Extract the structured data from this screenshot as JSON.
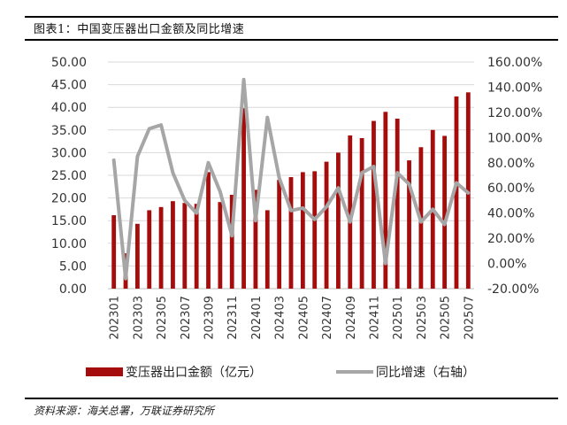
{
  "figure": {
    "title": "图表1：中国变压器出口金额及同比增速",
    "source": "资料来源：海关总署，万联证券研究所"
  },
  "chart_data": {
    "type": "bar+line",
    "categories": [
      "202301",
      "202302",
      "202303",
      "202304",
      "202305",
      "202306",
      "202307",
      "202308",
      "202309",
      "202310",
      "202311",
      "202312",
      "202401",
      "202402",
      "202403",
      "202404",
      "202405",
      "202406",
      "202407",
      "202408",
      "202409",
      "202410",
      "202411",
      "202412",
      "202501",
      "202502",
      "202503",
      "202504",
      "202505",
      "202506",
      "202507"
    ],
    "x_tick_labels": [
      "202301",
      "202303",
      "202305",
      "202307",
      "202309",
      "202311",
      "202401",
      "202403",
      "202405",
      "202407",
      "202409",
      "202411",
      "202501",
      "202503",
      "202505",
      "202507"
    ],
    "series": [
      {
        "name": "变压器出口金额（亿元）",
        "type": "bar",
        "axis": "left",
        "color": "#a50d0d",
        "values": [
          16.2,
          7.8,
          14.3,
          17.3,
          18.0,
          19.3,
          18.9,
          18.7,
          25.7,
          19.1,
          20.7,
          39.8,
          21.8,
          17.3,
          24.0,
          24.6,
          25.7,
          25.9,
          28.0,
          30.0,
          33.8,
          33.2,
          37.0,
          39.0,
          37.5,
          28.3,
          31.2,
          35.0,
          33.7,
          42.4,
          43.3
        ]
      },
      {
        "name": "同比增速（右轴）",
        "type": "line",
        "axis": "right",
        "color": "#a6a6a6",
        "values": [
          82,
          -12,
          85,
          107,
          110,
          72,
          50,
          40,
          80,
          57,
          22,
          146,
          34,
          116,
          68,
          42,
          44,
          35,
          45,
          60,
          33,
          72,
          77,
          0,
          72,
          63,
          33,
          43,
          31,
          64,
          56
        ]
      }
    ],
    "y_left": {
      "min": 0,
      "max": 50,
      "step": 5,
      "tick_labels": [
        "0.00",
        "5.00",
        "10.00",
        "15.00",
        "20.00",
        "25.00",
        "30.00",
        "35.00",
        "40.00",
        "45.00",
        "50.00"
      ]
    },
    "y_right": {
      "min": -20,
      "max": 160,
      "step": 20,
      "tick_labels": [
        "-20.00%",
        "0.00%",
        "20.00%",
        "40.00%",
        "60.00%",
        "80.00%",
        "100.00%",
        "120.00%",
        "140.00%",
        "160.00%"
      ]
    },
    "grid": true,
    "legend_position": "bottom"
  }
}
